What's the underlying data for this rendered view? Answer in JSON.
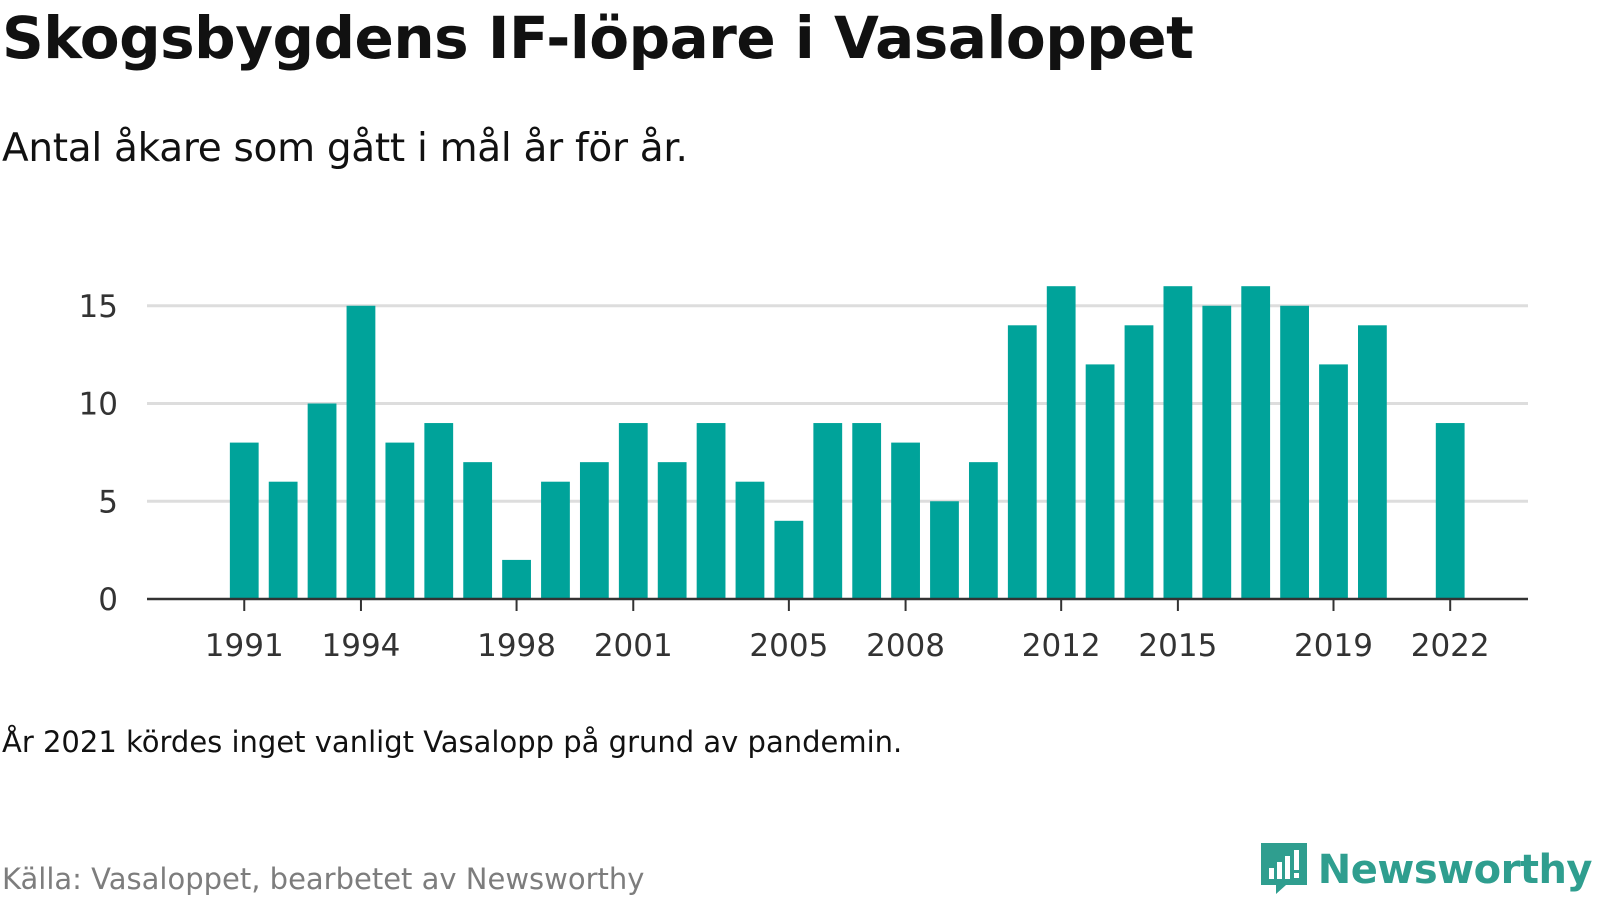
{
  "title": "Skogsbygdens IF-löpare i Vasaloppet",
  "subtitle": "Antal åkare som gått i mål år för år.",
  "note": "År 2021 kördes inget vanligt Vasalopp på grund av pandemin.",
  "source": "Källa: Vasaloppet, bearbetet av Newsworthy",
  "brand": {
    "name": "Newsworthy",
    "icon": "newsworthy-logo-icon",
    "color": "#2f9e8f"
  },
  "colors": {
    "bar": "#00a39a",
    "grid": "#dddddd",
    "axis": "#333333"
  },
  "chart_data": {
    "type": "bar",
    "x": [
      1991,
      1992,
      1993,
      1994,
      1995,
      1996,
      1997,
      1998,
      1999,
      2000,
      2001,
      2002,
      2003,
      2004,
      2005,
      2006,
      2007,
      2008,
      2009,
      2010,
      2011,
      2012,
      2013,
      2014,
      2015,
      2016,
      2017,
      2018,
      2019,
      2020,
      2022
    ],
    "values": [
      8,
      6,
      10,
      15,
      8,
      9,
      7,
      2,
      6,
      7,
      9,
      7,
      9,
      6,
      4,
      9,
      9,
      8,
      5,
      7,
      14,
      16,
      12,
      14,
      16,
      15,
      16,
      15,
      12,
      14,
      9
    ],
    "xticks": [
      1991,
      1994,
      1998,
      2001,
      2005,
      2008,
      2012,
      2015,
      2019,
      2022
    ],
    "yticks": [
      0,
      5,
      10,
      15
    ],
    "ylim": [
      0,
      16
    ],
    "xlim": [
      1988.5,
      2024
    ],
    "grid": true
  }
}
